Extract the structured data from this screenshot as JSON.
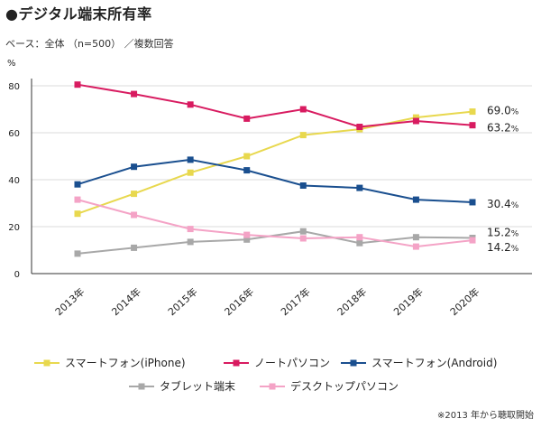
{
  "header": {
    "title": "●デジタル端末所有率",
    "subtitle": "ベース：全体 （n=500） ／複数回答"
  },
  "footnote": "※2013 年から聴取開始",
  "chart_data": {
    "type": "line",
    "title": "デジタル端末所有率",
    "y_unit": "%",
    "ylim": [
      0,
      80
    ],
    "y_ticks": [
      0,
      20,
      40,
      60,
      80
    ],
    "x": [
      "2013年",
      "2014年",
      "2015年",
      "2016年",
      "2017年",
      "2018年",
      "2019年",
      "2020年"
    ],
    "grid": "horizontal",
    "legend_placement": "bottom",
    "series": [
      {
        "name": "スマートフォン(iPhone)",
        "color": "#e8d84e",
        "values": [
          25.5,
          34,
          43,
          50,
          59,
          61.5,
          66.5,
          69.0
        ],
        "end_label": "69.0",
        "start": 0
      },
      {
        "name": "ノートパソコン",
        "color": "#d81b60",
        "values": [
          80.5,
          76.5,
          72,
          66,
          70,
          62.5,
          65,
          63.2
        ],
        "end_label": "63.2",
        "start": 0
      },
      {
        "name": "スマートフォン(Android)",
        "color": "#1a4f8f",
        "values": [
          38,
          45.5,
          48.5,
          44,
          37.5,
          36.5,
          31.5,
          30.4
        ],
        "end_label": "30.4",
        "start": 0
      },
      {
        "name": "タブレット端末",
        "color": "#a8a8a8",
        "values": [
          8.5,
          11,
          13.5,
          14.5,
          18,
          13,
          15.5,
          15.2
        ],
        "end_label": "15.2",
        "start": 0
      },
      {
        "name": "デスクトップパソコン",
        "color": "#f4a3c6",
        "values": [
          31.5,
          25,
          19,
          16.5,
          15,
          15.5,
          11.5,
          14.2
        ],
        "end_label": "14.2",
        "start": 0
      }
    ],
    "end_label_suffix": "%"
  }
}
